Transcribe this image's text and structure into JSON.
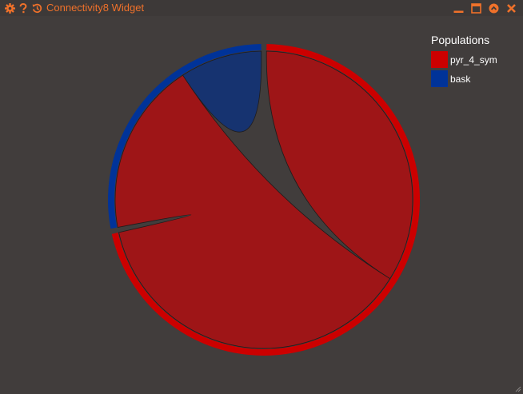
{
  "window": {
    "title": "Connectivity8 Widget"
  },
  "titlebar_icons": {
    "left": [
      "gear-icon",
      "help-icon",
      "history-icon"
    ],
    "right": [
      "minimize-icon",
      "maximize-icon",
      "collapse-icon",
      "close-icon"
    ],
    "accent_color": "#f0712a"
  },
  "legend": {
    "title": "Populations",
    "items": [
      {
        "label": "pyr_4_sym",
        "color": "#cc0000"
      },
      {
        "label": "bask",
        "color": "#003399"
      }
    ]
  },
  "chart_data": {
    "type": "chord",
    "title": "",
    "groups": [
      "pyr_4_sym",
      "bask"
    ],
    "colors": {
      "pyr_4_sym": "#cc0000",
      "bask": "#003399"
    },
    "chord_colors": {
      "pyr_4_sym": "#9e1517",
      "bask": "#163370"
    },
    "matrix": [
      [
        0.34,
        0.38
      ],
      [
        0.19,
        0.09
      ]
    ]
  }
}
